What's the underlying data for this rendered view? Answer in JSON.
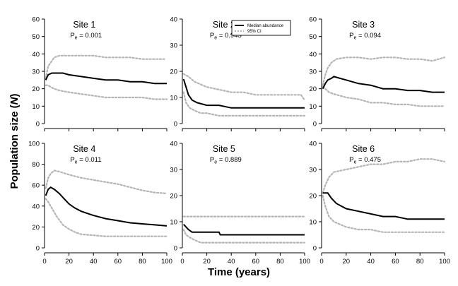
{
  "chart_data": {
    "type": "line",
    "ylabel_main": "Population size (",
    "ylabel_symbol": "N",
    "ylabel_close": ")",
    "xlabel": "Time (years)",
    "legend": {
      "median_label": "Median abundance",
      "ci_label": "95% CI",
      "placement": "top-center"
    },
    "colors": {
      "median": "#000000",
      "ci": "#b5b5b5"
    },
    "xlim": [
      0,
      100
    ],
    "xticks": [
      0,
      20,
      40,
      60,
      80,
      100
    ],
    "grid": false,
    "panels": [
      {
        "title": "Site 1",
        "p_prefix": "P",
        "p_sub": "e",
        "p_value": "= 0.001",
        "ylim": [
          0,
          60
        ],
        "yticks": [
          0,
          10,
          20,
          30,
          40,
          50,
          60
        ],
        "median": [
          [
            1,
            25
          ],
          [
            3,
            28
          ],
          [
            6,
            29
          ],
          [
            10,
            29
          ],
          [
            15,
            29
          ],
          [
            20,
            28
          ],
          [
            30,
            27
          ],
          [
            40,
            26
          ],
          [
            50,
            25
          ],
          [
            60,
            25
          ],
          [
            70,
            24
          ],
          [
            80,
            24
          ],
          [
            90,
            23
          ],
          [
            100,
            23
          ]
        ],
        "upper": [
          [
            1,
            26
          ],
          [
            3,
            33
          ],
          [
            5,
            35
          ],
          [
            8,
            38
          ],
          [
            12,
            39
          ],
          [
            20,
            39
          ],
          [
            30,
            39
          ],
          [
            40,
            39
          ],
          [
            50,
            38
          ],
          [
            60,
            38
          ],
          [
            70,
            38
          ],
          [
            80,
            37
          ],
          [
            90,
            37
          ],
          [
            98,
            37
          ]
        ],
        "lower": [
          [
            1,
            22
          ],
          [
            3,
            22
          ],
          [
            5,
            21
          ],
          [
            8,
            20
          ],
          [
            12,
            19
          ],
          [
            20,
            18
          ],
          [
            30,
            17
          ],
          [
            40,
            16
          ],
          [
            50,
            15
          ],
          [
            60,
            15
          ],
          [
            70,
            15
          ],
          [
            80,
            15
          ],
          [
            90,
            14
          ],
          [
            100,
            14
          ]
        ]
      },
      {
        "title": "Site 2",
        "p_prefix": "P",
        "p_sub": "e",
        "p_value": "= 0.943",
        "ylim": [
          0,
          40
        ],
        "yticks": [
          0,
          10,
          20,
          30,
          40
        ],
        "median": [
          [
            1,
            17
          ],
          [
            3,
            14
          ],
          [
            5,
            11
          ],
          [
            8,
            9
          ],
          [
            12,
            8
          ],
          [
            20,
            7
          ],
          [
            30,
            7
          ],
          [
            40,
            6
          ],
          [
            60,
            6
          ],
          [
            80,
            6
          ],
          [
            100,
            6
          ]
        ],
        "upper": [
          [
            1,
            19
          ],
          [
            5,
            18
          ],
          [
            10,
            16
          ],
          [
            15,
            15
          ],
          [
            20,
            14
          ],
          [
            30,
            13
          ],
          [
            40,
            12
          ],
          [
            50,
            12
          ],
          [
            60,
            11
          ],
          [
            80,
            11
          ],
          [
            97,
            11
          ],
          [
            100,
            9
          ]
        ],
        "lower": [
          [
            1,
            12
          ],
          [
            3,
            8
          ],
          [
            6,
            6
          ],
          [
            10,
            5
          ],
          [
            15,
            4
          ],
          [
            20,
            4
          ],
          [
            30,
            3
          ],
          [
            50,
            3
          ],
          [
            70,
            3
          ],
          [
            100,
            3
          ]
        ]
      },
      {
        "title": "Site 3",
        "p_prefix": "P",
        "p_sub": "e",
        "p_value": "= 0.094",
        "ylim": [
          0,
          60
        ],
        "yticks": [
          0,
          10,
          20,
          30,
          40,
          50,
          60
        ],
        "median": [
          [
            1,
            20
          ],
          [
            3,
            23
          ],
          [
            5,
            25
          ],
          [
            8,
            26
          ],
          [
            10,
            27
          ],
          [
            15,
            26
          ],
          [
            20,
            25
          ],
          [
            30,
            23
          ],
          [
            40,
            22
          ],
          [
            50,
            20
          ],
          [
            60,
            20
          ],
          [
            70,
            19
          ],
          [
            80,
            19
          ],
          [
            90,
            18
          ],
          [
            100,
            18
          ]
        ],
        "upper": [
          [
            1,
            22
          ],
          [
            3,
            28
          ],
          [
            5,
            32
          ],
          [
            8,
            35
          ],
          [
            12,
            37
          ],
          [
            20,
            38
          ],
          [
            30,
            38
          ],
          [
            40,
            37
          ],
          [
            50,
            38
          ],
          [
            60,
            38
          ],
          [
            70,
            37
          ],
          [
            80,
            37
          ],
          [
            90,
            36
          ],
          [
            100,
            38
          ]
        ],
        "lower": [
          [
            1,
            21
          ],
          [
            3,
            20
          ],
          [
            6,
            18
          ],
          [
            10,
            17
          ],
          [
            15,
            16
          ],
          [
            20,
            15
          ],
          [
            30,
            14
          ],
          [
            40,
            12
          ],
          [
            50,
            12
          ],
          [
            60,
            11
          ],
          [
            70,
            11
          ],
          [
            80,
            10
          ],
          [
            90,
            10
          ],
          [
            100,
            10
          ]
        ]
      },
      {
        "title": "Site 4",
        "p_prefix": "P",
        "p_sub": "e",
        "p_value": "= 0.011",
        "ylim": [
          0,
          100
        ],
        "yticks": [
          0,
          20,
          40,
          60,
          80,
          100
        ],
        "median": [
          [
            1,
            50
          ],
          [
            3,
            56
          ],
          [
            5,
            58
          ],
          [
            8,
            56
          ],
          [
            12,
            52
          ],
          [
            16,
            47
          ],
          [
            20,
            42
          ],
          [
            25,
            38
          ],
          [
            30,
            35
          ],
          [
            40,
            31
          ],
          [
            50,
            28
          ],
          [
            60,
            26
          ],
          [
            70,
            24
          ],
          [
            80,
            23
          ],
          [
            90,
            22
          ],
          [
            100,
            21
          ]
        ],
        "upper": [
          [
            1,
            57
          ],
          [
            3,
            67
          ],
          [
            5,
            71
          ],
          [
            8,
            74
          ],
          [
            12,
            73
          ],
          [
            20,
            70
          ],
          [
            30,
            67
          ],
          [
            40,
            65
          ],
          [
            50,
            63
          ],
          [
            60,
            61
          ],
          [
            70,
            58
          ],
          [
            80,
            55
          ],
          [
            90,
            53
          ],
          [
            100,
            52
          ]
        ],
        "lower": [
          [
            1,
            47
          ],
          [
            3,
            44
          ],
          [
            6,
            38
          ],
          [
            10,
            30
          ],
          [
            15,
            22
          ],
          [
            20,
            18
          ],
          [
            25,
            15
          ],
          [
            30,
            13
          ],
          [
            40,
            12
          ],
          [
            50,
            11
          ],
          [
            60,
            11
          ],
          [
            70,
            11
          ],
          [
            80,
            11
          ],
          [
            90,
            11
          ],
          [
            100,
            11
          ]
        ]
      },
      {
        "title": "Site 5",
        "p_prefix": "P",
        "p_sub": "e",
        "p_value": "= 0.889",
        "ylim": [
          0,
          40
        ],
        "yticks": [
          0,
          10,
          20,
          30,
          40
        ],
        "median": [
          [
            1,
            9
          ],
          [
            3,
            8
          ],
          [
            5,
            7
          ],
          [
            8,
            6
          ],
          [
            15,
            6
          ],
          [
            20,
            6
          ],
          [
            30,
            6
          ],
          [
            31,
            5
          ],
          [
            50,
            5
          ],
          [
            70,
            5
          ],
          [
            100,
            5
          ]
        ],
        "upper": [
          [
            1,
            12
          ],
          [
            20,
            12
          ],
          [
            40,
            12
          ],
          [
            60,
            12
          ],
          [
            80,
            12
          ],
          [
            100,
            12
          ]
        ],
        "lower": [
          [
            1,
            7
          ],
          [
            3,
            5
          ],
          [
            6,
            4
          ],
          [
            10,
            3
          ],
          [
            15,
            2
          ],
          [
            20,
            2
          ],
          [
            40,
            2
          ],
          [
            60,
            2
          ],
          [
            80,
            2
          ],
          [
            100,
            2
          ]
        ]
      },
      {
        "title": "Site 6",
        "p_prefix": "P",
        "p_sub": "e",
        "p_value": "= 0.475",
        "ylim": [
          0,
          40
        ],
        "yticks": [
          0,
          10,
          20,
          30,
          40
        ],
        "median": [
          [
            1,
            21
          ],
          [
            5,
            21
          ],
          [
            8,
            19
          ],
          [
            12,
            17
          ],
          [
            20,
            15
          ],
          [
            30,
            14
          ],
          [
            40,
            13
          ],
          [
            50,
            12
          ],
          [
            60,
            12
          ],
          [
            70,
            11
          ],
          [
            80,
            11
          ],
          [
            90,
            11
          ],
          [
            100,
            11
          ]
        ],
        "upper": [
          [
            1,
            21
          ],
          [
            3,
            24
          ],
          [
            6,
            27
          ],
          [
            10,
            29
          ],
          [
            20,
            30
          ],
          [
            30,
            31
          ],
          [
            40,
            32
          ],
          [
            50,
            32
          ],
          [
            60,
            33
          ],
          [
            70,
            33
          ],
          [
            80,
            34
          ],
          [
            90,
            34
          ],
          [
            100,
            33
          ]
        ],
        "lower": [
          [
            1,
            20
          ],
          [
            3,
            16
          ],
          [
            6,
            12
          ],
          [
            10,
            10
          ],
          [
            15,
            9
          ],
          [
            20,
            8
          ],
          [
            30,
            7
          ],
          [
            40,
            7
          ],
          [
            50,
            6
          ],
          [
            60,
            6
          ],
          [
            80,
            6
          ],
          [
            100,
            6
          ]
        ]
      }
    ]
  }
}
